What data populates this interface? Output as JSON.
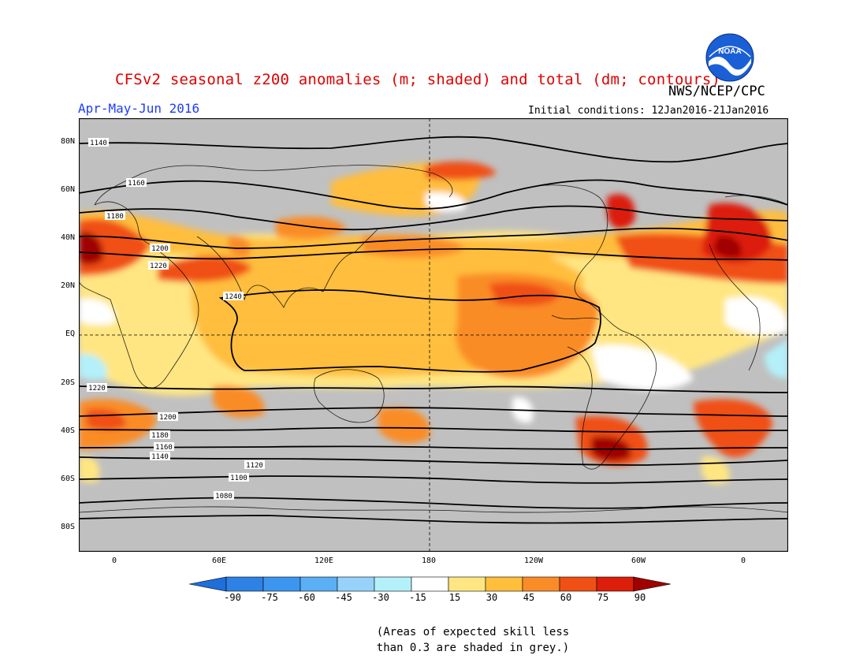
{
  "header": {
    "title": "CFSv2 seasonal z200 anomalies (m; shaded) and total (dm; contours)",
    "agency": "NWS/NCEP/CPC",
    "season": "Apr-May-Jun 2016",
    "initial_conditions": "Initial conditions: 12Jan2016-21Jan2016"
  },
  "logo": {
    "icon": "noaa-logo",
    "text": "NOAA"
  },
  "map": {
    "lat_ticks": [
      "80N",
      "60N",
      "40N",
      "20N",
      "EQ",
      "20S",
      "40S",
      "60S",
      "80S"
    ],
    "lon_ticks": [
      "0",
      "60E",
      "120E",
      "180",
      "120W",
      "60W",
      "0"
    ],
    "contour_labels": [
      "1140",
      "1160",
      "1180",
      "1200",
      "1220",
      "1240",
      "1220",
      "1200",
      "1180",
      "1160",
      "1140",
      "1120",
      "1100",
      "1080"
    ],
    "colors": {
      "grey_mask": "#c0c0c0",
      "ocean_land": "#c0c0c0",
      "frame": "#000000"
    }
  },
  "colorbar": {
    "labels": [
      "-90",
      "-75",
      "-60",
      "-45",
      "-30",
      "-15",
      "15",
      "30",
      "45",
      "60",
      "75",
      "90"
    ],
    "colors": [
      "#1e6edc",
      "#2e82e6",
      "#3c96f0",
      "#5aaff5",
      "#96d2fa",
      "#b4f0fa",
      "#ffffff",
      "#ffe682",
      "#ffbe3c",
      "#fa8c28",
      "#f05014",
      "#dc1e0a",
      "#a00000"
    ]
  },
  "note": "(Areas of expected skill less\nthan 0.3 are shaded in grey.)"
}
